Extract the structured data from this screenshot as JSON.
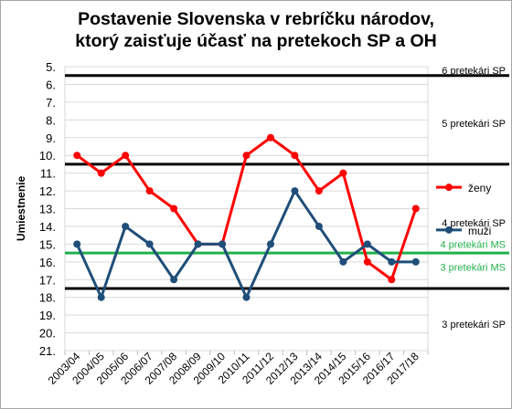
{
  "chart_data": {
    "type": "line",
    "title_lines": [
      "Postavenie Slovenska v rebríčku národov,",
      "ktorý zaisťuje účasť na pretekoch SP a OH"
    ],
    "ylabel": "Umiestnenie",
    "xlabel": "",
    "ylim": [
      5,
      21
    ],
    "y_inverted": true,
    "y_ticks": [
      "5.",
      "6.",
      "7.",
      "8.",
      "9.",
      "10.",
      "11.",
      "12.",
      "13.",
      "14.",
      "15.",
      "16.",
      "17.",
      "18.",
      "19.",
      "20.",
      "21."
    ],
    "categories": [
      "2003/04",
      "2004/05",
      "2005/06",
      "2006/07",
      "2007/08",
      "2008/09",
      "2009/10",
      "2010/11",
      "2011/12",
      "2012/13",
      "2013/14",
      "2014/15",
      "2015/16",
      "2016/17",
      "2017/18"
    ],
    "series": [
      {
        "name": "ženy",
        "color": "#ff0000",
        "values": [
          10,
          11,
          10,
          12,
          13,
          15,
          15,
          10,
          9,
          10,
          12,
          11,
          16,
          17,
          13
        ]
      },
      {
        "name": "muži",
        "color": "#1f4e79",
        "values": [
          15,
          18,
          14,
          15,
          17,
          15,
          15,
          18,
          15,
          12,
          14,
          16,
          15,
          16,
          16
        ]
      }
    ],
    "thresholds": [
      {
        "value": 5.5,
        "color": "#000000"
      },
      {
        "value": 10.5,
        "color": "#000000"
      },
      {
        "value": 15.5,
        "color": "#22b14c"
      },
      {
        "value": 17.5,
        "color": "#000000"
      }
    ],
    "zone_labels": [
      {
        "text": "6 pretekári SP",
        "y": 5.2,
        "color": "#000000"
      },
      {
        "text": "5 pretekári SP",
        "y": 8.2,
        "color": "#000000"
      },
      {
        "text": "4 pretekári SP",
        "y": 13.8,
        "color": "#000000"
      },
      {
        "text": "4 pretekári MS",
        "y": 15.0,
        "color": "#22b14c"
      },
      {
        "text": "3 pretekári MS",
        "y": 16.3,
        "color": "#22b14c"
      },
      {
        "text": "3 pretekári SP",
        "y": 19.5,
        "color": "#000000"
      }
    ],
    "grid": "horizontal",
    "legend_position": "right"
  }
}
